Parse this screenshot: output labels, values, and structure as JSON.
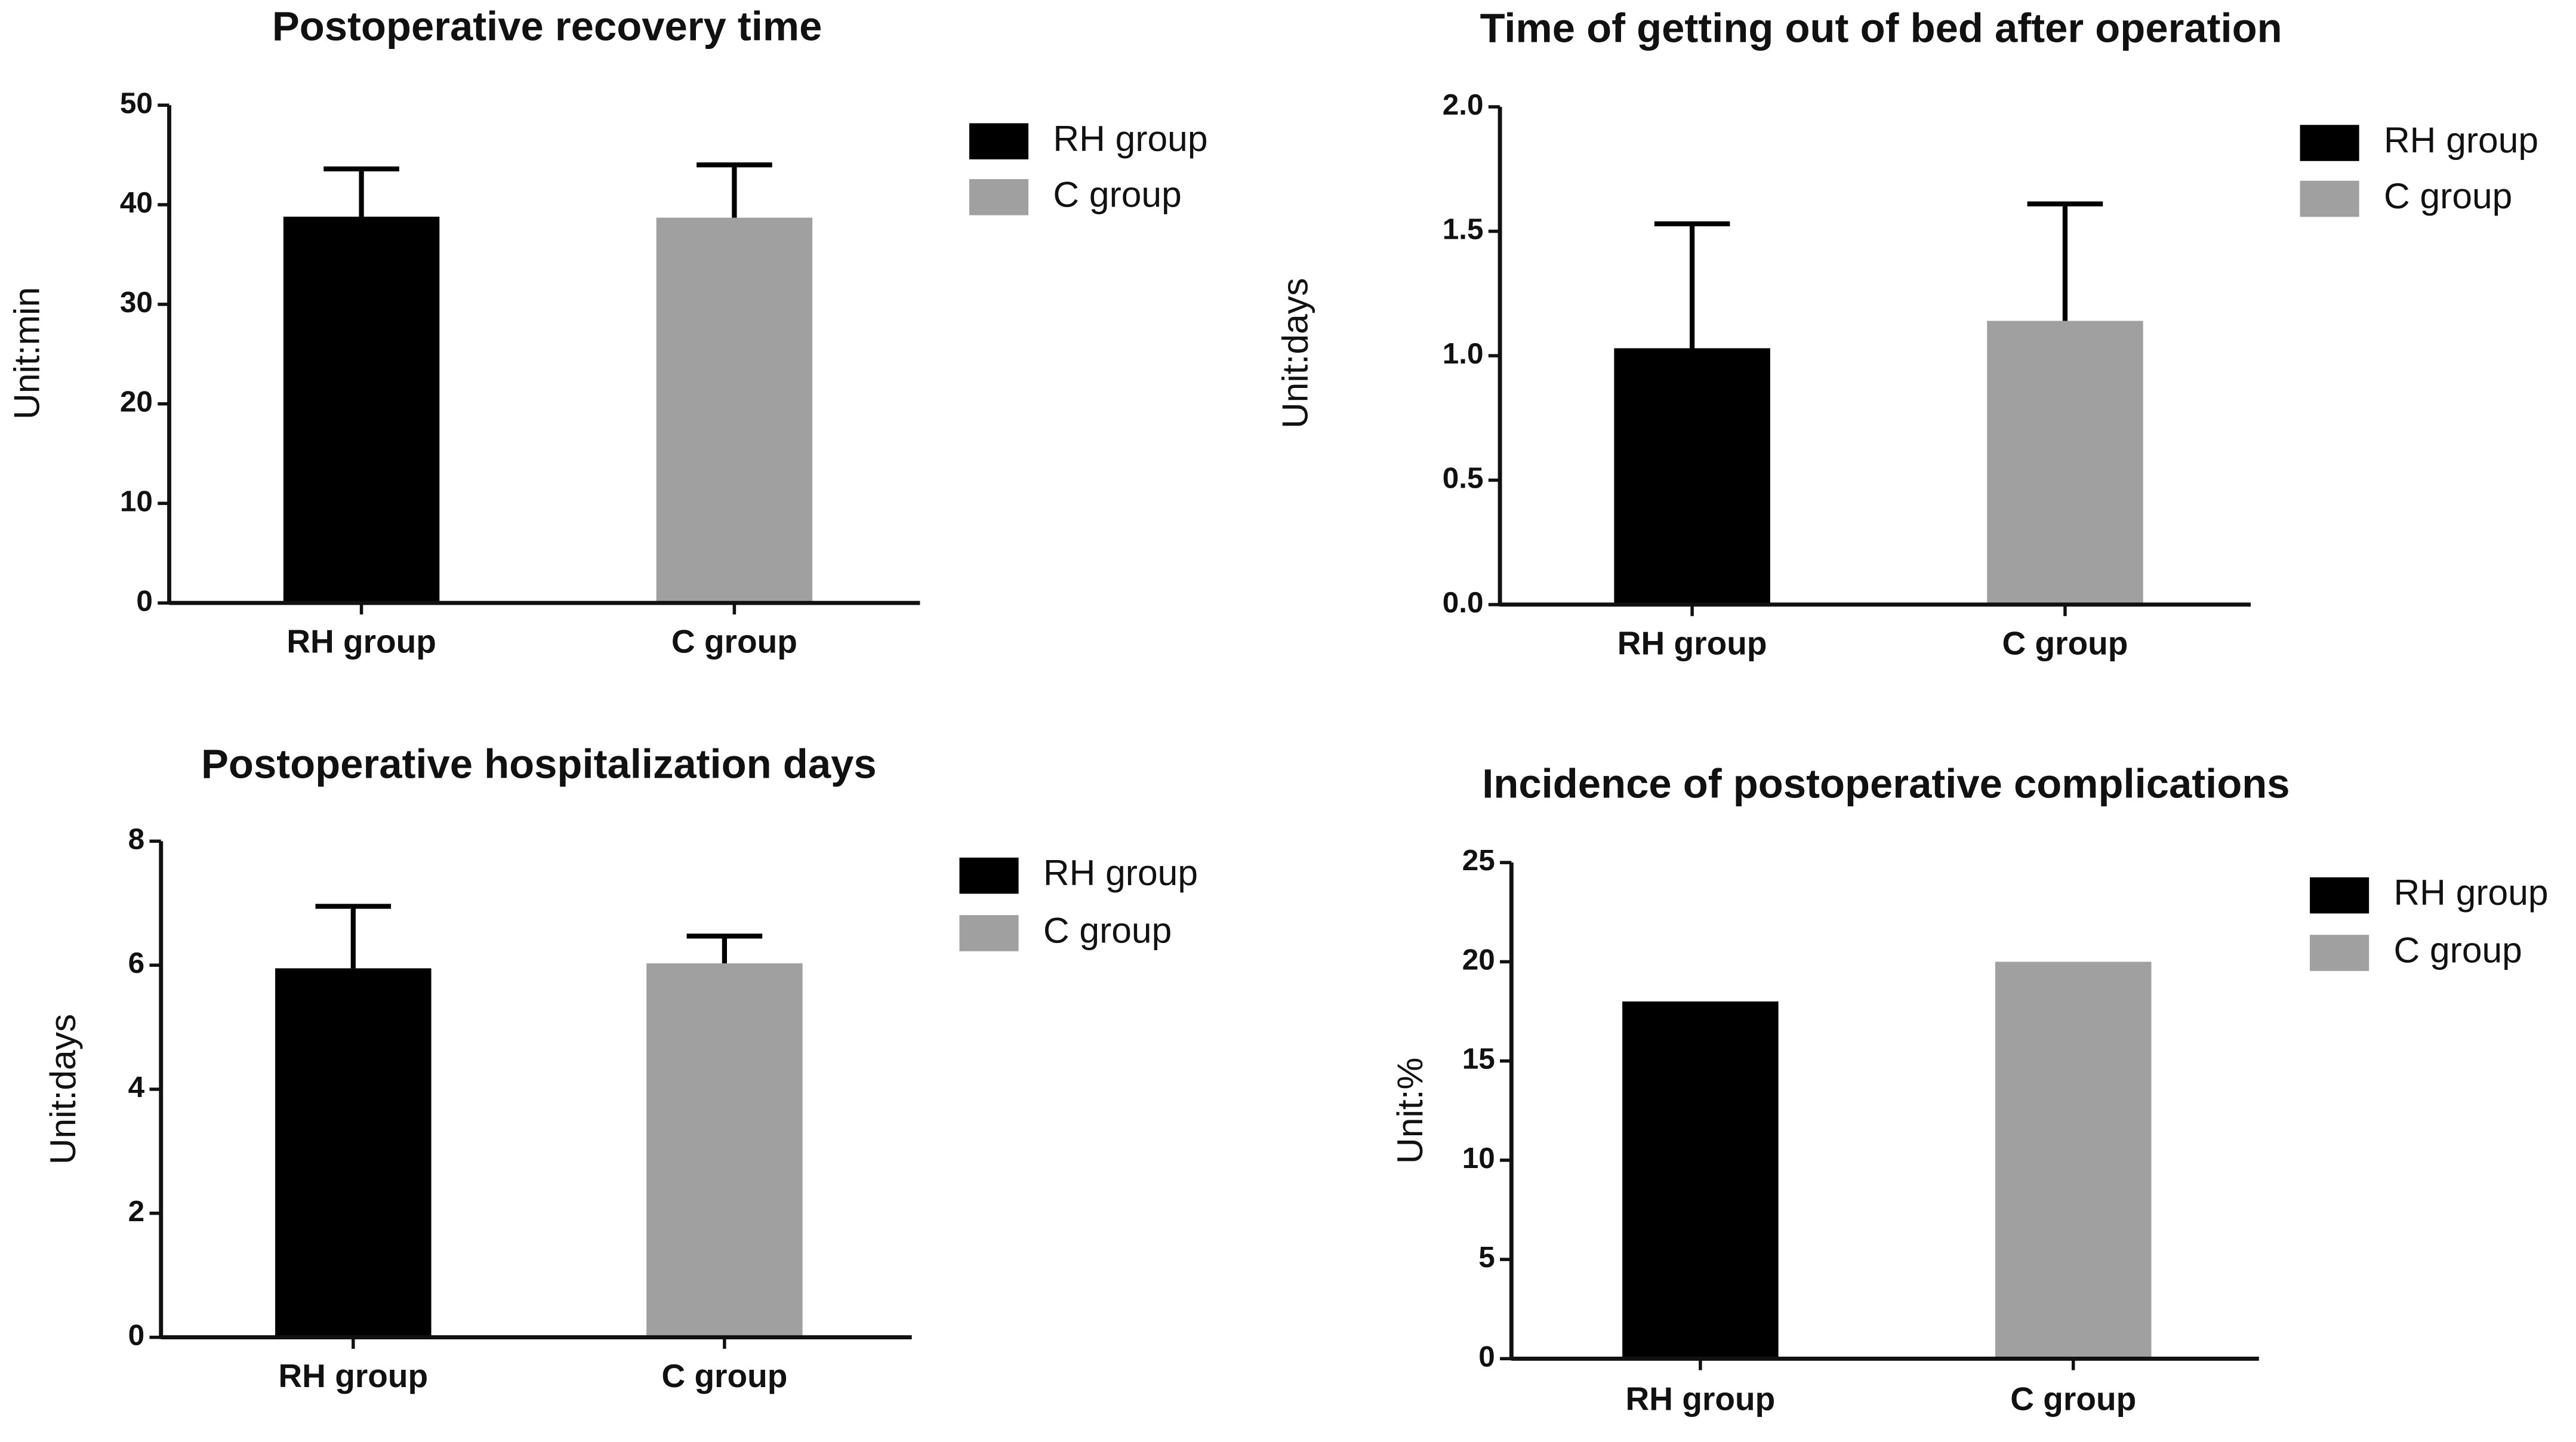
{
  "chart_data": [
    {
      "type": "bar",
      "title": "Postoperative recovery time",
      "y_label": "Unit:min",
      "categories": [
        "RH group",
        "C group"
      ],
      "values": [
        38.8,
        38.7
      ],
      "errors": [
        4.8,
        5.3
      ],
      "colors": [
        "#000000",
        "#a0a0a0"
      ],
      "ylim": [
        0,
        50
      ],
      "yticks": [
        0,
        10,
        20,
        30,
        40,
        50
      ],
      "legend": "right"
    },
    {
      "type": "bar",
      "title": "Time of getting out of bed after operation",
      "y_label": "Unit:days",
      "categories": [
        "RH group",
        "C group"
      ],
      "values": [
        1.03,
        1.14
      ],
      "errors": [
        0.5,
        0.47
      ],
      "colors": [
        "#000000",
        "#a0a0a0"
      ],
      "ylim": [
        0,
        2
      ],
      "yticks": [
        {
          "value": 0,
          "label": "0.0"
        },
        0.5,
        {
          "value": 1,
          "label": "1.0"
        },
        1.5,
        {
          "value": 2,
          "label": "2.0"
        }
      ],
      "legend": "right"
    },
    {
      "type": "bar",
      "title": "Postoperative hospitalization days",
      "y_label": "Unit:days",
      "categories": [
        "RH group",
        "C group"
      ],
      "values": [
        5.95,
        6.03
      ],
      "errors": [
        1.0,
        0.44
      ],
      "colors": [
        "#000000",
        "#a0a0a0"
      ],
      "ylim": [
        0,
        8
      ],
      "yticks": [
        0,
        2,
        4,
        6,
        8
      ],
      "legend": "right"
    },
    {
      "type": "bar",
      "title": "Incidence of postoperative complications",
      "y_label": "Unit:%",
      "categories": [
        "RH group",
        "C group"
      ],
      "values": [
        18,
        20
      ],
      "colors": [
        "#000000",
        "#a0a0a0"
      ],
      "ylim": [
        0,
        25
      ],
      "yticks": [
        0,
        5,
        10,
        15,
        20,
        25
      ],
      "legend": "right"
    }
  ]
}
